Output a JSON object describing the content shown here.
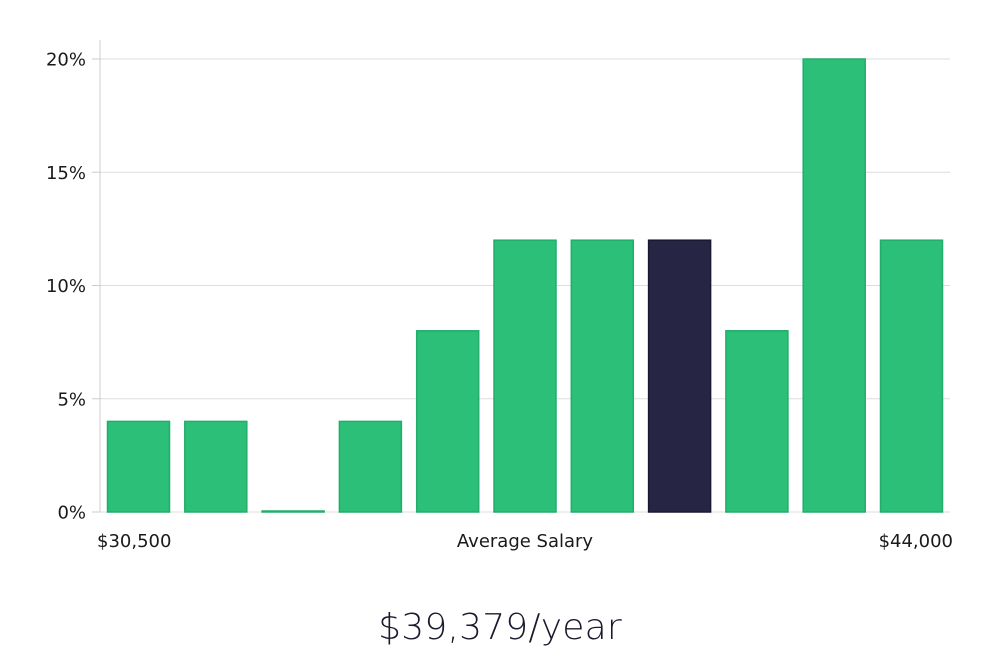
{
  "chart_data": {
    "type": "bar",
    "title": "",
    "xlabel": "Average Salary",
    "ylabel": "",
    "x_min_label": "$30,500",
    "x_max_label": "$44,000",
    "ylim": [
      0,
      20
    ],
    "yticks": [
      0,
      5,
      10,
      15,
      20
    ],
    "ytick_labels": [
      "0%",
      "5%",
      "10%",
      "15%",
      "20%"
    ],
    "grid": true,
    "values": [
      4,
      4,
      0,
      4,
      8,
      12,
      12,
      12,
      8,
      20,
      12
    ],
    "highlight_index": 7,
    "bar_color": "#2bbf78",
    "bar_border_color": "#22ad6b",
    "highlight_color": "#272544",
    "grid_color": "#dddddd",
    "axis_color": "#cccccc"
  },
  "summary": {
    "average_salary": "$39,379/year"
  }
}
